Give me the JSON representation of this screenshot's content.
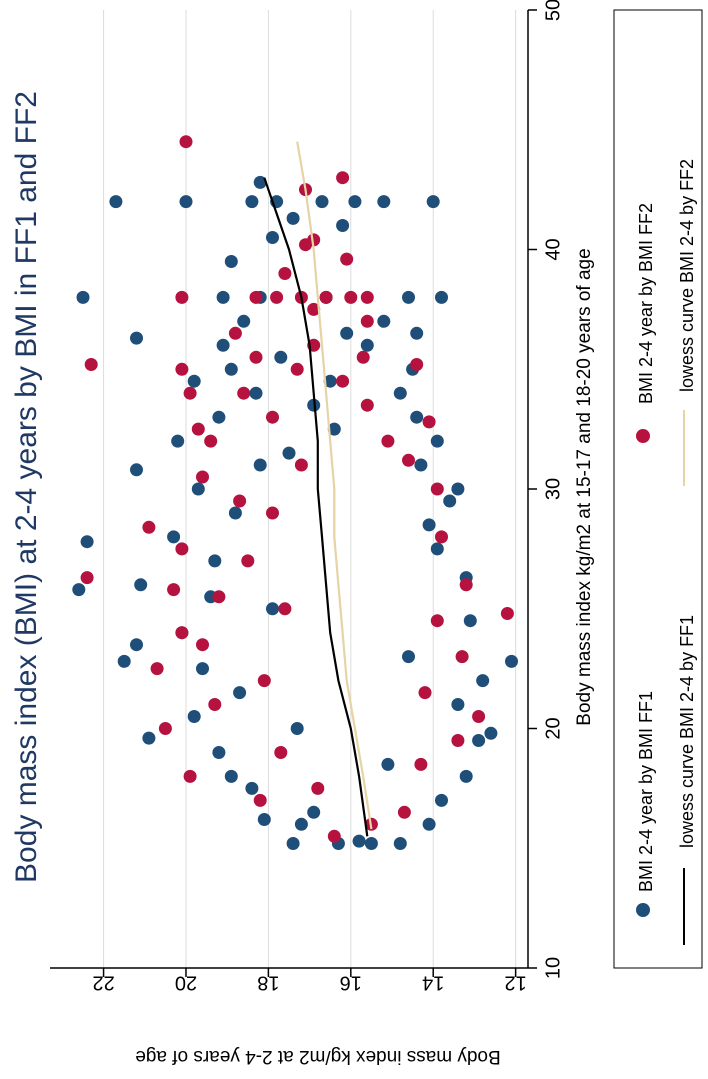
{
  "chart_data": {
    "type": "scatter",
    "title": "Body mass index (BMI) at 2-4 years by BMI in FF1 and FF2",
    "xlabel": "Body mass index kg/m2 at 15-17 and 18-20 years of age",
    "ylabel": "Body mass index kg/m2 at 2-4 years of age",
    "xlim": [
      10,
      50
    ],
    "ylim": [
      11.7,
      23.3
    ],
    "x_ticks": [
      "10",
      "20",
      "30",
      "40",
      "50"
    ],
    "y_ticks": [
      "12",
      "14",
      "16",
      "18",
      "20",
      "22"
    ],
    "grid": true,
    "legend_position": "bottom",
    "orientation": "rotated 90 degrees clockwise",
    "series": [
      {
        "name": "BMI 2-4 year by BMI FF1",
        "kind": "points",
        "color": "#1f4e79",
        "points": [
          [
            15.2,
            15.5
          ],
          [
            15.2,
            14.8
          ],
          [
            15.2,
            16.3
          ],
          [
            15.2,
            17.4
          ],
          [
            15.3,
            15.8
          ],
          [
            16,
            17.2
          ],
          [
            16,
            14.1
          ],
          [
            16.2,
            18.1
          ],
          [
            16.5,
            16.9
          ],
          [
            17,
            13.8
          ],
          [
            17.5,
            18.4
          ],
          [
            18,
            13.2
          ],
          [
            18,
            18.9
          ],
          [
            18.5,
            15.1
          ],
          [
            19,
            19.2
          ],
          [
            19.5,
            12.9
          ],
          [
            19.6,
            20.9
          ],
          [
            19.8,
            12.6
          ],
          [
            20,
            17.3
          ],
          [
            20.5,
            19.8
          ],
          [
            21,
            13.4
          ],
          [
            21.5,
            18.7
          ],
          [
            22,
            12.8
          ],
          [
            22.5,
            19.6
          ],
          [
            22.8,
            21.5
          ],
          [
            22.8,
            12.1
          ],
          [
            23,
            14.6
          ],
          [
            23.5,
            21.2
          ],
          [
            24,
            20.1
          ],
          [
            24.5,
            13.1
          ],
          [
            25,
            17.9
          ],
          [
            25.5,
            19.4
          ],
          [
            25.8,
            22.6
          ],
          [
            26,
            21.1
          ],
          [
            26.3,
            13.2
          ],
          [
            27,
            19.3
          ],
          [
            27.5,
            13.9
          ],
          [
            27.8,
            22.4
          ],
          [
            28,
            20.3
          ],
          [
            28.5,
            14.1
          ],
          [
            29,
            18.8
          ],
          [
            29.5,
            13.6
          ],
          [
            30,
            19.7
          ],
          [
            30,
            13.4
          ],
          [
            30.8,
            21.2
          ],
          [
            31,
            18.2
          ],
          [
            31,
            14.3
          ],
          [
            31.5,
            17.5
          ],
          [
            32,
            20.2
          ],
          [
            32,
            13.9
          ],
          [
            32.5,
            16.4
          ],
          [
            33,
            19.2
          ],
          [
            33,
            14.4
          ],
          [
            33.5,
            16.9
          ],
          [
            34,
            18.3
          ],
          [
            34,
            14.8
          ],
          [
            34.5,
            19.8
          ],
          [
            34.5,
            16.5
          ],
          [
            35,
            18.9
          ],
          [
            35,
            14.5
          ],
          [
            35.5,
            17.7
          ],
          [
            36,
            19.1
          ],
          [
            36,
            15.6
          ],
          [
            36.3,
            21.2
          ],
          [
            36.5,
            16.1
          ],
          [
            36.5,
            14.4
          ],
          [
            37,
            18.6
          ],
          [
            37,
            15.2
          ],
          [
            38,
            19.1
          ],
          [
            38,
            18.2
          ],
          [
            38,
            16.6
          ],
          [
            38,
            14.6
          ],
          [
            38,
            22.5
          ],
          [
            38,
            13.8
          ],
          [
            39.5,
            18.9
          ],
          [
            40.5,
            17.9
          ],
          [
            41,
            16.2
          ],
          [
            41.3,
            17.4
          ],
          [
            42,
            20
          ],
          [
            42,
            18.4
          ],
          [
            42,
            17.8
          ],
          [
            42,
            16.7
          ],
          [
            42,
            15.9
          ],
          [
            42,
            15.2
          ],
          [
            42,
            14
          ],
          [
            42,
            21.7
          ],
          [
            42.8,
            18.2
          ]
        ]
      },
      {
        "name": "BMI 2-4 year by BMI FF2",
        "kind": "points",
        "color": "#b5123f",
        "points": [
          [
            15.5,
            16.4
          ],
          [
            16,
            15.5
          ],
          [
            16.5,
            14.7
          ],
          [
            17,
            18.2
          ],
          [
            17.5,
            16.8
          ],
          [
            18,
            19.9
          ],
          [
            18.5,
            14.3
          ],
          [
            19,
            17.7
          ],
          [
            19.5,
            13.4
          ],
          [
            20,
            20.5
          ],
          [
            20.5,
            12.9
          ],
          [
            21,
            19.3
          ],
          [
            21.5,
            14.2
          ],
          [
            22,
            18.1
          ],
          [
            22.5,
            20.7
          ],
          [
            23,
            13.3
          ],
          [
            23.5,
            19.6
          ],
          [
            24,
            20.1
          ],
          [
            24.5,
            13.9
          ],
          [
            24.8,
            12.2
          ],
          [
            25,
            17.6
          ],
          [
            25.5,
            19.2
          ],
          [
            25.8,
            20.3
          ],
          [
            26,
            13.2
          ],
          [
            26.3,
            22.4
          ],
          [
            27,
            18.5
          ],
          [
            27.5,
            20.1
          ],
          [
            28,
            13.8
          ],
          [
            28.4,
            20.9
          ],
          [
            29,
            17.9
          ],
          [
            29.5,
            18.7
          ],
          [
            30,
            13.9
          ],
          [
            30.5,
            19.6
          ],
          [
            31,
            17.2
          ],
          [
            31.2,
            14.6
          ],
          [
            32,
            19.4
          ],
          [
            32,
            15.1
          ],
          [
            32.5,
            19.7
          ],
          [
            32.8,
            14.1
          ],
          [
            33,
            17.9
          ],
          [
            33.5,
            15.6
          ],
          [
            34,
            19.9
          ],
          [
            34,
            18.6
          ],
          [
            34.5,
            16.2
          ],
          [
            35,
            20.1
          ],
          [
            35,
            17.3
          ],
          [
            35.2,
            22.3
          ],
          [
            35.2,
            14.4
          ],
          [
            35.5,
            18.3
          ],
          [
            35.5,
            15.7
          ],
          [
            36,
            16.9
          ],
          [
            36.5,
            18.8
          ],
          [
            37,
            15.6
          ],
          [
            37.5,
            16.9
          ],
          [
            38,
            18.3
          ],
          [
            38,
            17.8
          ],
          [
            38,
            17.2
          ],
          [
            38,
            16.6
          ],
          [
            38,
            16
          ],
          [
            38,
            15.6
          ],
          [
            38,
            20.1
          ],
          [
            39,
            17.6
          ],
          [
            39.6,
            16.1
          ],
          [
            40.2,
            17.1
          ],
          [
            40.4,
            16.9
          ],
          [
            42.5,
            17.1
          ],
          [
            43,
            16.2
          ],
          [
            44.5,
            20
          ]
        ]
      },
      {
        "name": "lowess curve BMI 2-4 by FF1",
        "kind": "line",
        "color": "#000000",
        "points": [
          [
            15.5,
            15.6
          ],
          [
            18,
            15.8
          ],
          [
            20,
            16
          ],
          [
            22,
            16.3
          ],
          [
            24,
            16.5
          ],
          [
            26,
            16.6
          ],
          [
            28,
            16.7
          ],
          [
            30,
            16.8
          ],
          [
            32,
            16.8
          ],
          [
            34,
            16.9
          ],
          [
            36,
            17
          ],
          [
            38,
            17.2
          ],
          [
            40,
            17.5
          ],
          [
            43,
            18.1
          ]
        ]
      },
      {
        "name": "lowess curve BMI 2-4 by FF2",
        "kind": "line",
        "color": "#e6d3a6",
        "points": [
          [
            15.8,
            15.5
          ],
          [
            18,
            15.7
          ],
          [
            20,
            15.9
          ],
          [
            22,
            16.1
          ],
          [
            24,
            16.2
          ],
          [
            26,
            16.3
          ],
          [
            28,
            16.4
          ],
          [
            30,
            16.4
          ],
          [
            32,
            16.5
          ],
          [
            34,
            16.6
          ],
          [
            36,
            16.7
          ],
          [
            38,
            16.8
          ],
          [
            40,
            16.9
          ],
          [
            42.5,
            17.1
          ],
          [
            44.5,
            17.3
          ]
        ]
      }
    ],
    "colors": {
      "plot_bg": "#ffffff",
      "frame": "#000000",
      "grid": "#dcdcdc",
      "text": "#000000",
      "title": "#1f3864"
    }
  }
}
